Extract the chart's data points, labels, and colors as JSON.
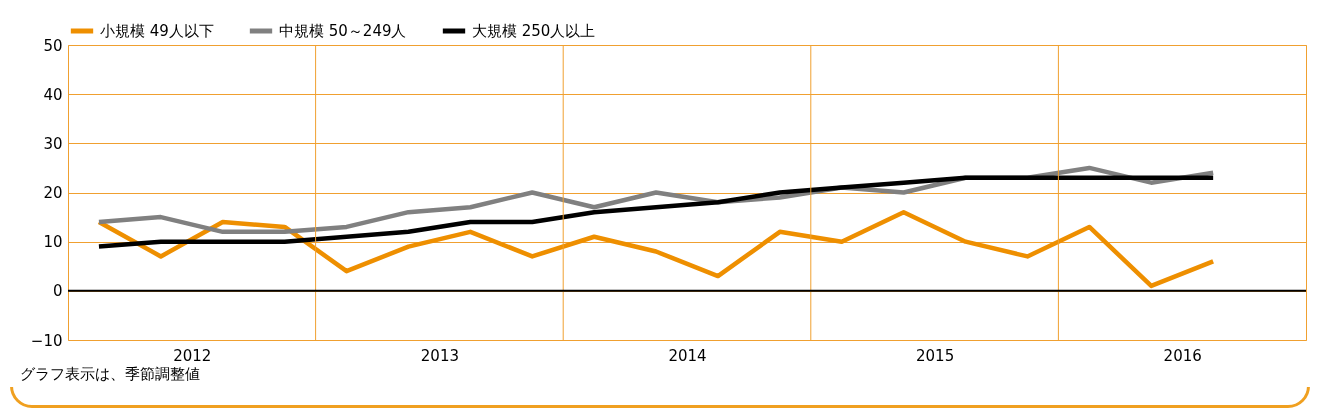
{
  "chart_data": {
    "type": "line",
    "legend": "top",
    "grid": true,
    "line_style": "solid",
    "marker": "none",
    "x": [
      2012.125,
      2012.375,
      2012.625,
      2012.875,
      2013.125,
      2013.375,
      2013.625,
      2013.875,
      2014.125,
      2014.375,
      2014.625,
      2014.875,
      2015.125,
      2015.375,
      2015.625,
      2015.875,
      2016.125,
      2016.375,
      2016.625
    ],
    "xlim": [
      2012,
      2017
    ],
    "xticks": [
      {
        "value": 2013,
        "label": null
      },
      {
        "value": 2014,
        "label": null
      },
      {
        "value": 2015,
        "label": null
      },
      {
        "value": 2016,
        "label": null
      },
      {
        "value": 2012.5,
        "label": "2012"
      },
      {
        "value": 2013.5,
        "label": "2013"
      },
      {
        "value": 2014.5,
        "label": "2014"
      },
      {
        "value": 2015.5,
        "label": "2015"
      },
      {
        "value": 2016.5,
        "label": "2016"
      }
    ],
    "ylim": [
      -10,
      50
    ],
    "yticks": [
      -10,
      0,
      10,
      20,
      30,
      40,
      50
    ],
    "series": [
      {
        "name": "小規模 49人以下",
        "color": "#ee8f00",
        "values": [
          14,
          7,
          14,
          13,
          4,
          9,
          12,
          7,
          11,
          8,
          3,
          12,
          10,
          16,
          10,
          7,
          13,
          1,
          6
        ]
      },
      {
        "name": "中規模 50～249人",
        "color": "#808080",
        "values": [
          14,
          15,
          12,
          12,
          13,
          16,
          17,
          20,
          17,
          20,
          18,
          19,
          21,
          20,
          23,
          23,
          25,
          22,
          24
        ]
      },
      {
        "name": "大規模 250人以上",
        "color": "#000000",
        "values": [
          9,
          10,
          10,
          10,
          11,
          12,
          14,
          14,
          16,
          17,
          18,
          20,
          21,
          22,
          23,
          23,
          23,
          23,
          23
        ]
      }
    ],
    "ref_lines": [
      {
        "axis": "y",
        "value": 0,
        "color": "#000000"
      }
    ],
    "annotations": [
      "グラフ表示は、季節調整値"
    ]
  }
}
